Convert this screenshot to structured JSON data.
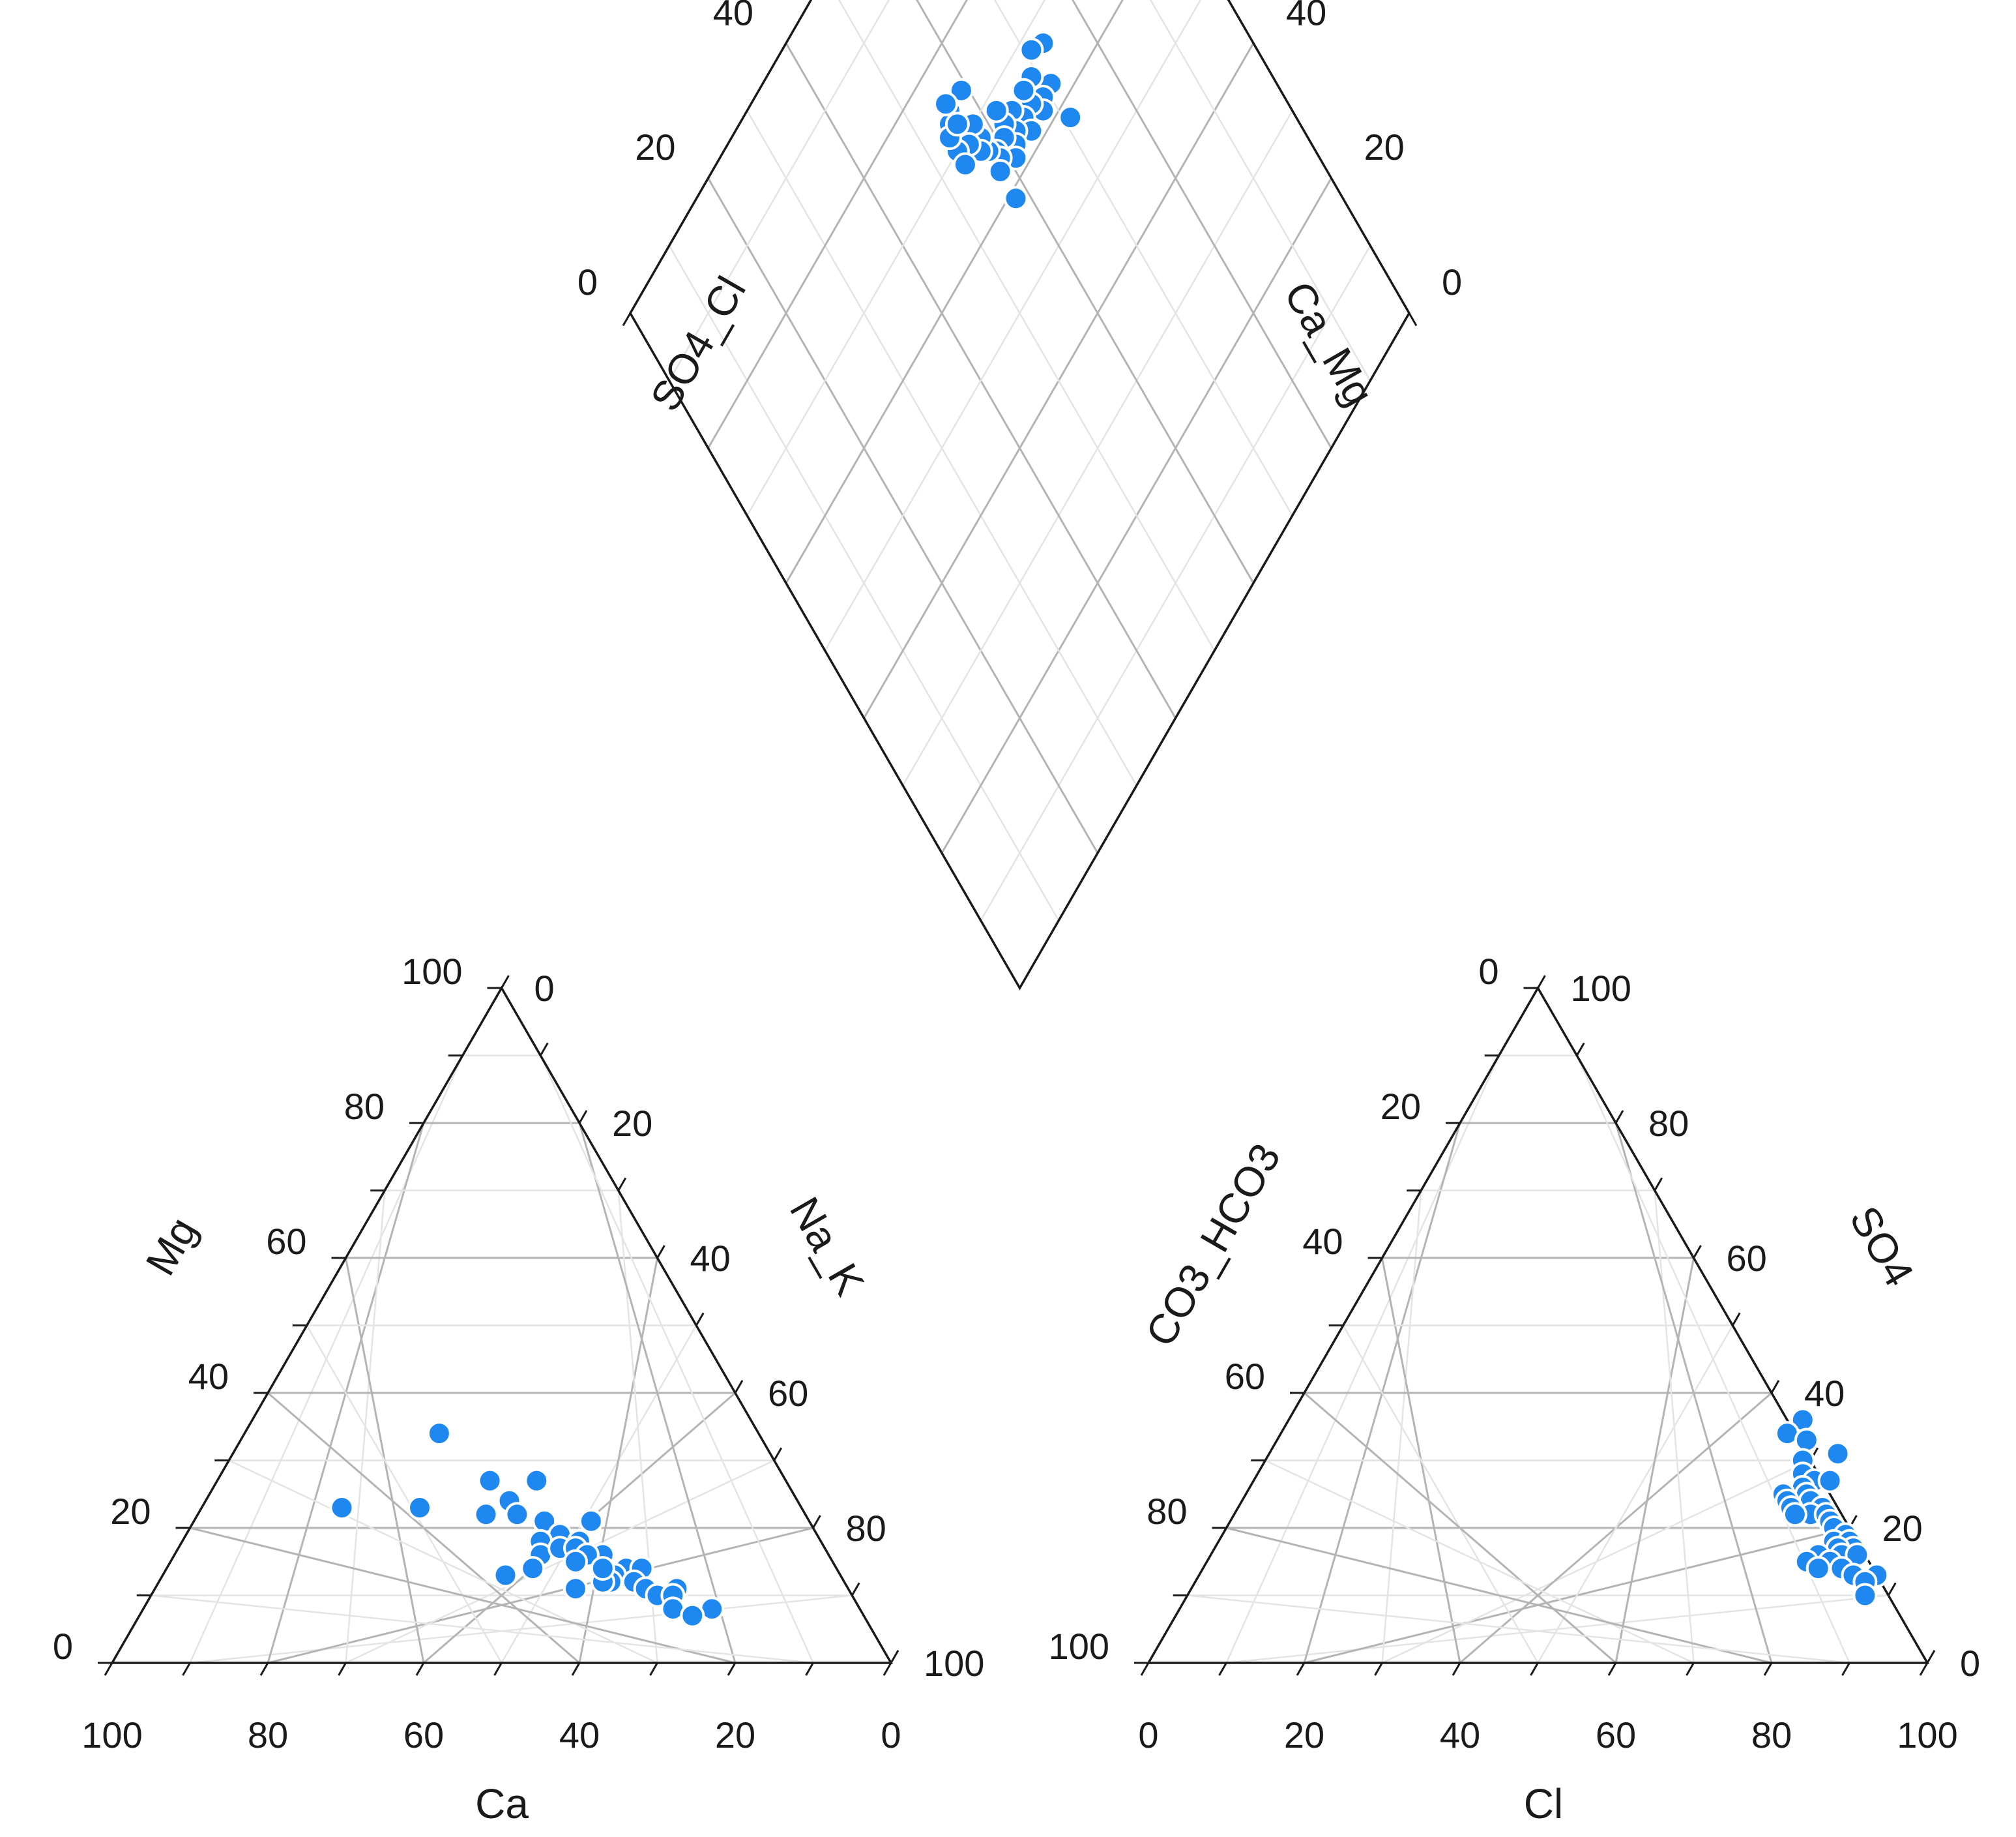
{
  "chart_data": {
    "type": "scatter",
    "subtype": "piper-diagram",
    "point_color": "#1e88f0",
    "ticks": [
      "0",
      "20",
      "40",
      "60",
      "80",
      "100"
    ],
    "cation_triangle": {
      "axes": {
        "bottom": "Ca",
        "left": "Mg",
        "right": "Na_K"
      },
      "points": [
        {
          "Ca": 59,
          "Mg": 23
        },
        {
          "Ca": 41,
          "Mg": 34
        },
        {
          "Ca": 49,
          "Mg": 23
        },
        {
          "Ca": 38,
          "Mg": 27
        },
        {
          "Ca": 32,
          "Mg": 27
        },
        {
          "Ca": 37,
          "Mg": 24
        },
        {
          "Ca": 41,
          "Mg": 22
        },
        {
          "Ca": 37,
          "Mg": 22
        },
        {
          "Ca": 28,
          "Mg": 21
        },
        {
          "Ca": 34,
          "Mg": 21
        },
        {
          "Ca": 33,
          "Mg": 19
        },
        {
          "Ca": 31,
          "Mg": 18
        },
        {
          "Ca": 36,
          "Mg": 18
        },
        {
          "Ca": 37,
          "Mg": 16
        },
        {
          "Ca": 34,
          "Mg": 17
        },
        {
          "Ca": 32,
          "Mg": 17
        },
        {
          "Ca": 29,
          "Mg": 16
        },
        {
          "Ca": 31,
          "Mg": 16
        },
        {
          "Ca": 33,
          "Mg": 15
        },
        {
          "Ca": 27,
          "Mg": 14
        },
        {
          "Ca": 25,
          "Mg": 14
        },
        {
          "Ca": 29,
          "Mg": 13
        },
        {
          "Ca": 30,
          "Mg": 12
        },
        {
          "Ca": 31,
          "Mg": 12
        },
        {
          "Ca": 27,
          "Mg": 12
        },
        {
          "Ca": 26,
          "Mg": 11
        },
        {
          "Ca": 35,
          "Mg": 11
        },
        {
          "Ca": 43,
          "Mg": 13
        },
        {
          "Ca": 39,
          "Mg": 14
        },
        {
          "Ca": 22,
          "Mg": 11
        },
        {
          "Ca": 25,
          "Mg": 10
        },
        {
          "Ca": 23,
          "Mg": 10
        },
        {
          "Ca": 19,
          "Mg": 8
        },
        {
          "Ca": 24,
          "Mg": 8
        },
        {
          "Ca": 22,
          "Mg": 7
        },
        {
          "Ca": 30,
          "Mg": 14
        }
      ]
    },
    "anion_triangle": {
      "axes": {
        "bottom": "Cl",
        "left": "CO3_HCO3",
        "right": "SO4"
      },
      "points": [
        {
          "Cl": 66,
          "SO4": 36
        },
        {
          "Cl": 65,
          "SO4": 34
        },
        {
          "Cl": 68,
          "SO4": 33
        },
        {
          "Cl": 73,
          "SO4": 31
        },
        {
          "Cl": 69,
          "SO4": 30
        },
        {
          "Cl": 70,
          "SO4": 28
        },
        {
          "Cl": 72,
          "SO4": 27
        },
        {
          "Cl": 74,
          "SO4": 27
        },
        {
          "Cl": 71,
          "SO4": 26
        },
        {
          "Cl": 69,
          "SO4": 25
        },
        {
          "Cl": 72,
          "SO4": 25
        },
        {
          "Cl": 70,
          "SO4": 24
        },
        {
          "Cl": 73,
          "SO4": 24
        },
        {
          "Cl": 75,
          "SO4": 23
        },
        {
          "Cl": 71,
          "SO4": 23
        },
        {
          "Cl": 74,
          "SO4": 22
        },
        {
          "Cl": 76,
          "SO4": 22
        },
        {
          "Cl": 72,
          "SO4": 22
        },
        {
          "Cl": 77,
          "SO4": 21
        },
        {
          "Cl": 78,
          "SO4": 20
        },
        {
          "Cl": 80,
          "SO4": 19
        },
        {
          "Cl": 79,
          "SO4": 18
        },
        {
          "Cl": 81,
          "SO4": 18
        },
        {
          "Cl": 82,
          "SO4": 17
        },
        {
          "Cl": 80,
          "SO4": 17
        },
        {
          "Cl": 78,
          "SO4": 16
        },
        {
          "Cl": 81,
          "SO4": 16
        },
        {
          "Cl": 83,
          "SO4": 16
        },
        {
          "Cl": 77,
          "SO4": 15
        },
        {
          "Cl": 80,
          "SO4": 15
        },
        {
          "Cl": 82,
          "SO4": 14
        },
        {
          "Cl": 79,
          "SO4": 14
        },
        {
          "Cl": 84,
          "SO4": 13
        },
        {
          "Cl": 87,
          "SO4": 13
        },
        {
          "Cl": 86,
          "SO4": 12
        },
        {
          "Cl": 87,
          "SO4": 10
        }
      ]
    },
    "diamond": {
      "axes": {
        "left_upper": "SO4_Cl",
        "right_upper": "Ca_Mg",
        "left_lower": "CO3_HCO3"
      },
      "points": [
        {
          "Ca_Mg": 34,
          "SO4_Cl": 86
        },
        {
          "Ca_Mg": 33,
          "SO4_Cl": 73
        },
        {
          "Ca_Mg": 32,
          "SO4_Cl": 71
        },
        {
          "Ca_Mg": 42,
          "SO4_Cl": 71
        },
        {
          "Ca_Mg": 37,
          "SO4_Cl": 71
        },
        {
          "Ca_Mg": 37,
          "SO4_Cl": 69
        },
        {
          "Ca_Mg": 38,
          "SO4_Cl": 68
        },
        {
          "Ca_Mg": 36,
          "SO4_Cl": 67
        },
        {
          "Ca_Mg": 34,
          "SO4_Cl": 69
        },
        {
          "Ca_Mg": 34,
          "SO4_Cl": 67
        },
        {
          "Ca_Mg": 36,
          "SO4_Cl": 65
        },
        {
          "Ca_Mg": 38,
          "SO4_Cl": 65
        },
        {
          "Ca_Mg": 34,
          "SO4_Cl": 64
        },
        {
          "Ca_Mg": 36,
          "SO4_Cl": 63
        },
        {
          "Ca_Mg": 34,
          "SO4_Cl": 62
        },
        {
          "Ca_Mg": 32,
          "SO4_Cl": 62
        },
        {
          "Ca_Mg": 37,
          "SO4_Cl": 62
        },
        {
          "Ca_Mg": 35,
          "SO4_Cl": 61
        },
        {
          "Ca_Mg": 38,
          "SO4_Cl": 61
        },
        {
          "Ca_Mg": 35,
          "SO4_Cl": 59
        },
        {
          "Ca_Mg": 36,
          "SO4_Cl": 59
        },
        {
          "Ca_Mg": 34,
          "SO4_Cl": 58
        },
        {
          "Ca_Mg": 37,
          "SO4_Cl": 58
        },
        {
          "Ca_Mg": 41,
          "SO4_Cl": 58
        },
        {
          "Ca_Mg": 32,
          "SO4_Cl": 58
        },
        {
          "Ca_Mg": 30,
          "SO4_Cl": 58
        },
        {
          "Ca_Mg": 33,
          "SO4_Cl": 57
        },
        {
          "Ca_Mg": 31,
          "SO4_Cl": 56
        },
        {
          "Ca_Mg": 30,
          "SO4_Cl": 54
        },
        {
          "Ca_Mg": 32,
          "SO4_Cl": 54
        },
        {
          "Ca_Mg": 26,
          "SO4_Cl": 59
        },
        {
          "Ca_Mg": 26,
          "SO4_Cl": 56
        },
        {
          "Ca_Mg": 27,
          "SO4_Cl": 55
        },
        {
          "Ca_Mg": 28,
          "SO4_Cl": 54
        },
        {
          "Ca_Mg": 28,
          "SO4_Cl": 56
        },
        {
          "Ca_Mg": 25,
          "SO4_Cl": 56
        }
      ]
    }
  }
}
